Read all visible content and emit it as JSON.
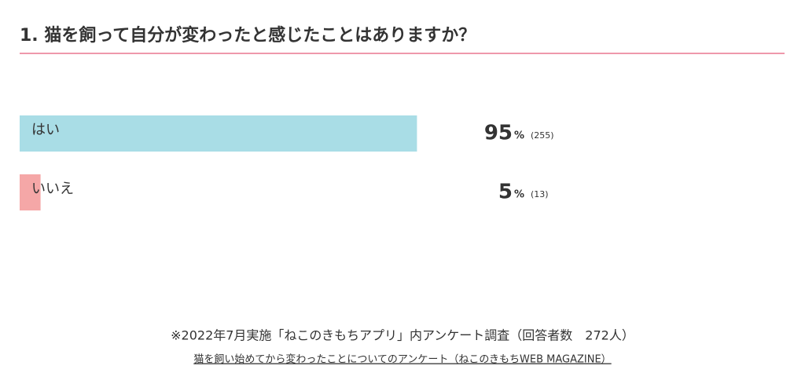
{
  "chart_data": {
    "type": "bar",
    "orientation": "horizontal",
    "title": "1. 猫を飼って自分が変わったと感じたことはありますか？",
    "categories": [
      "はい",
      "いいえ"
    ],
    "values": [
      95,
      5
    ],
    "unit": "%",
    "count_labels": [
      "(255)",
      "(13)"
    ],
    "colors": [
      "#a9dde6",
      "#f5a7a7"
    ],
    "xlim": [
      0,
      100
    ],
    "footnote": "※2022年7月実施「ねこのきもちアプリ」内アンケート調査（回答者数　272人）",
    "source": "猫を飼い始めてから変わったことについてのアンケート（ねこのきもちWEB MAGAZINE）"
  }
}
